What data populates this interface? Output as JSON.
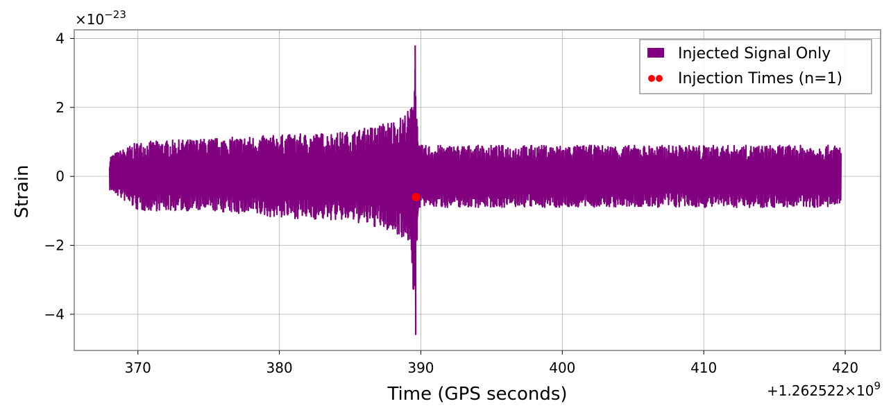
{
  "chart_data": {
    "type": "line",
    "xlabel": "Time (GPS seconds)",
    "ylabel": "Strain",
    "x_offset_text": "+1.262522×10⁹",
    "x_offset_prefix": "+1.262522×",
    "x_offset_base": "10",
    "x_offset_exp": "9",
    "y_scale_prefix": "×",
    "y_scale_base": "10",
    "y_scale_exp": "−23",
    "y_scale_text": "×10⁻²³",
    "xlim": [
      365.5,
      422.5
    ],
    "ylim": [
      -5.05,
      4.25
    ],
    "x_ticks": [
      370,
      380,
      390,
      400,
      410,
      420
    ],
    "x_tick_labels": [
      "370",
      "380",
      "390",
      "400",
      "410",
      "420"
    ],
    "y_ticks": [
      4,
      2,
      0,
      -2,
      -4
    ],
    "y_tick_labels": [
      "4",
      "2",
      "0",
      "−2",
      "−4"
    ],
    "grid": true,
    "legend_placement": "top-right",
    "series": [
      {
        "name": "Injected Signal Only",
        "color": "#800080",
        "x_range": [
          368.0,
          419.7
        ],
        "envelope": [
          {
            "x": 368.0,
            "upper": 0.6,
            "lower": -0.4
          },
          {
            "x": 370.0,
            "upper": 1.0,
            "lower": -1.0
          },
          {
            "x": 375.0,
            "upper": 1.1,
            "lower": -1.0
          },
          {
            "x": 380.0,
            "upper": 1.2,
            "lower": -1.2
          },
          {
            "x": 385.0,
            "upper": 1.3,
            "lower": -1.3
          },
          {
            "x": 387.0,
            "upper": 1.5,
            "lower": -1.5
          },
          {
            "x": 388.5,
            "upper": 1.7,
            "lower": -1.7
          },
          {
            "x": 389.3,
            "upper": 2.0,
            "lower": -2.0
          },
          {
            "x": 389.6,
            "upper": 3.8,
            "lower": -4.6
          },
          {
            "x": 389.8,
            "upper": 0.9,
            "lower": -0.9
          },
          {
            "x": 395.0,
            "upper": 0.9,
            "lower": -0.9
          },
          {
            "x": 405.0,
            "upper": 0.9,
            "lower": -0.9
          },
          {
            "x": 419.7,
            "upper": 0.9,
            "lower": -0.9
          }
        ]
      },
      {
        "name": "Injection Times (n=1)",
        "color": "#ff0000",
        "type": "scatter",
        "points": [
          {
            "x": 389.65,
            "y": -0.6
          }
        ]
      }
    ]
  }
}
